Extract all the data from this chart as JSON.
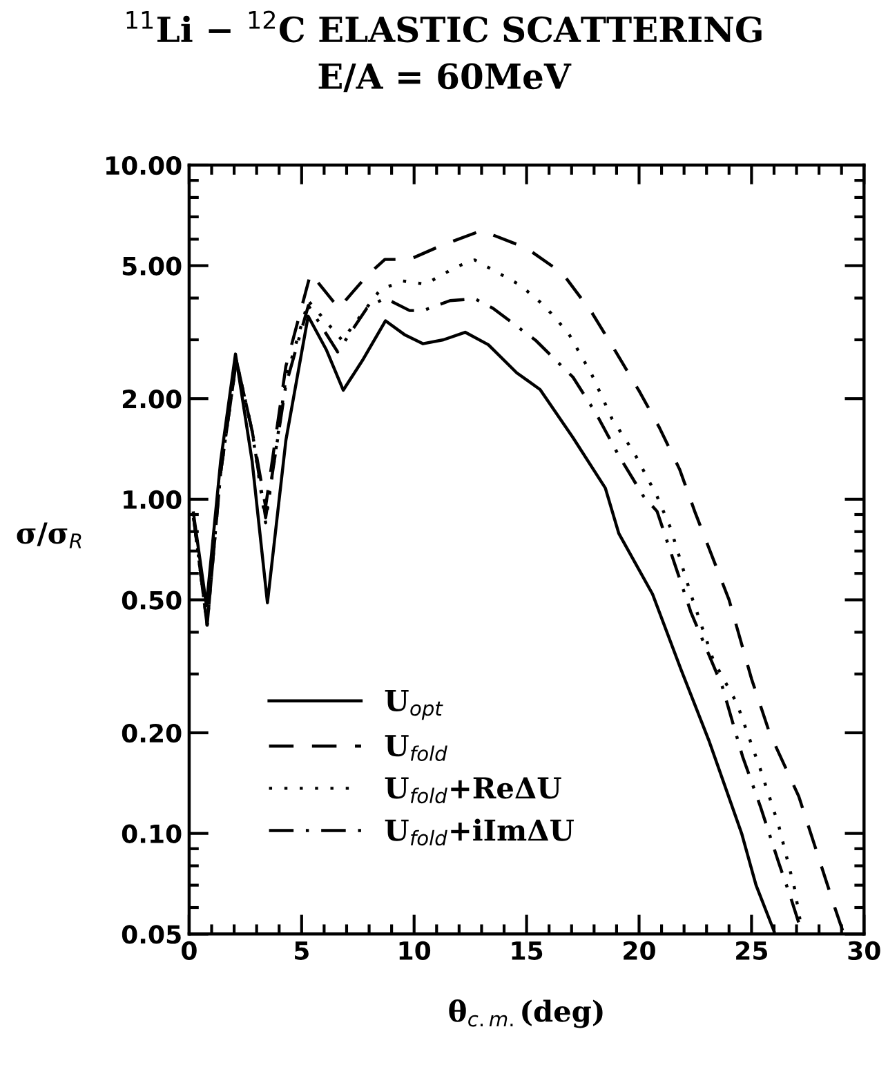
{
  "chart_data": {
    "type": "line",
    "title": "$^{11}$Li − $^{12}$C ELASTIC SCATTERING\nE/A = 60MeV",
    "xlabel": "θ$_{c.m.}$(deg)",
    "ylabel": "σ/σ$_{R}$",
    "log": "y",
    "xlim": [
      0,
      30
    ],
    "xticks": [
      0,
      5,
      10,
      15,
      20,
      25,
      30
    ],
    "ylim": [
      0.05,
      10
    ],
    "yticks": [
      {
        "value": 0.05,
        "label": "0.05"
      },
      {
        "value": 0.1,
        "label": "0.10"
      },
      {
        "value": 0.2,
        "label": "0.20"
      },
      {
        "value": 0.5,
        "label": "0.50"
      },
      {
        "value": 1,
        "label": "1.00"
      },
      {
        "value": 2,
        "label": "2.00"
      },
      {
        "value": 5,
        "label": "5.00"
      },
      {
        "value": 10,
        "label": "10.00"
      }
    ],
    "grid": false,
    "legend": "bottom left",
    "series": [
      {
        "name": "U$_{opt}$",
        "color": "#000000",
        "line_style": "solid",
        "x": [
          0.19,
          0.77,
          1.4,
          2.06,
          2.8,
          3.48,
          4.3,
          5.29,
          6.1,
          6.85,
          7.7,
          8.73,
          9.6,
          10.4,
          11.3,
          12.27,
          13.3,
          14.56,
          15.6,
          17.06,
          18.5,
          19.1,
          20.6,
          21.86,
          23.1,
          23.7,
          24.56,
          25.2,
          26.0
        ],
        "values": [
          0.91,
          0.48,
          1.3,
          2.72,
          1.3,
          0.49,
          1.5,
          3.53,
          2.8,
          2.12,
          2.6,
          3.42,
          3.1,
          2.92,
          3.0,
          3.16,
          2.9,
          2.39,
          2.13,
          1.53,
          1.08,
          0.79,
          0.52,
          0.31,
          0.19,
          0.146,
          0.1,
          0.07,
          0.051
        ]
      },
      {
        "name": "U$_{fold}$",
        "color": "#000000",
        "line_style": "dashed",
        "x": [
          0.2,
          0.8,
          1.4,
          2.1,
          2.8,
          3.4,
          4.3,
          5.4,
          6.65,
          7.9,
          8.7,
          9.8,
          11.2,
          13.0,
          15.0,
          16.6,
          17.9,
          18.9,
          20.0,
          20.9,
          21.8,
          22.5,
          24.0,
          25.0,
          25.8,
          27.1,
          27.9,
          28.7,
          29.1
        ],
        "values": [
          0.88,
          0.42,
          1.2,
          2.6,
          1.6,
          0.95,
          2.5,
          4.74,
          3.73,
          4.66,
          5.22,
          5.22,
          5.74,
          6.37,
          5.64,
          4.74,
          3.62,
          2.81,
          2.11,
          1.64,
          1.23,
          0.91,
          0.5,
          0.29,
          0.2,
          0.129,
          0.088,
          0.06,
          0.05
        ]
      },
      {
        "name": "U$_{fold}$+ReΔU",
        "color": "#000000",
        "line_style": "dotted",
        "x": [
          0.2,
          0.8,
          1.4,
          2.1,
          2.8,
          3.4,
          4.3,
          5.3,
          6.8,
          8.5,
          9.5,
          10.5,
          11.9,
          12.7,
          14.7,
          15.8,
          16.86,
          17.9,
          18.8,
          19.8,
          20.8,
          21.4,
          22.3,
          23.3,
          24.35,
          25.4,
          26.2,
          26.9,
          27.2
        ],
        "values": [
          0.88,
          0.42,
          1.2,
          2.6,
          1.6,
          0.85,
          2.3,
          3.92,
          2.99,
          4.24,
          4.5,
          4.4,
          4.97,
          5.2,
          4.38,
          3.79,
          3.14,
          2.36,
          1.74,
          1.37,
          1.02,
          0.82,
          0.52,
          0.33,
          0.245,
          0.155,
          0.106,
          0.069,
          0.053
        ]
      },
      {
        "name": "U$_{fold}$+iImΔU",
        "color": "#000000",
        "line_style": "dashdot",
        "x": [
          0.2,
          0.8,
          1.4,
          2.1,
          2.8,
          3.4,
          4.3,
          5.3,
          6.6,
          7.9,
          8.7,
          9.8,
          10.4,
          11.6,
          12.7,
          13.5,
          15.4,
          17.06,
          18.1,
          19.1,
          20.2,
          20.8,
          22.3,
          23.7,
          24.6,
          25.4,
          26.2,
          26.75,
          27.1
        ],
        "values": [
          0.88,
          0.42,
          1.2,
          2.6,
          1.6,
          0.88,
          2.2,
          3.8,
          2.76,
          3.73,
          4.0,
          3.67,
          3.67,
          3.93,
          3.98,
          3.73,
          2.99,
          2.32,
          1.8,
          1.35,
          1.02,
          0.92,
          0.46,
          0.275,
          0.17,
          0.12,
          0.082,
          0.064,
          0.054
        ]
      }
    ]
  }
}
